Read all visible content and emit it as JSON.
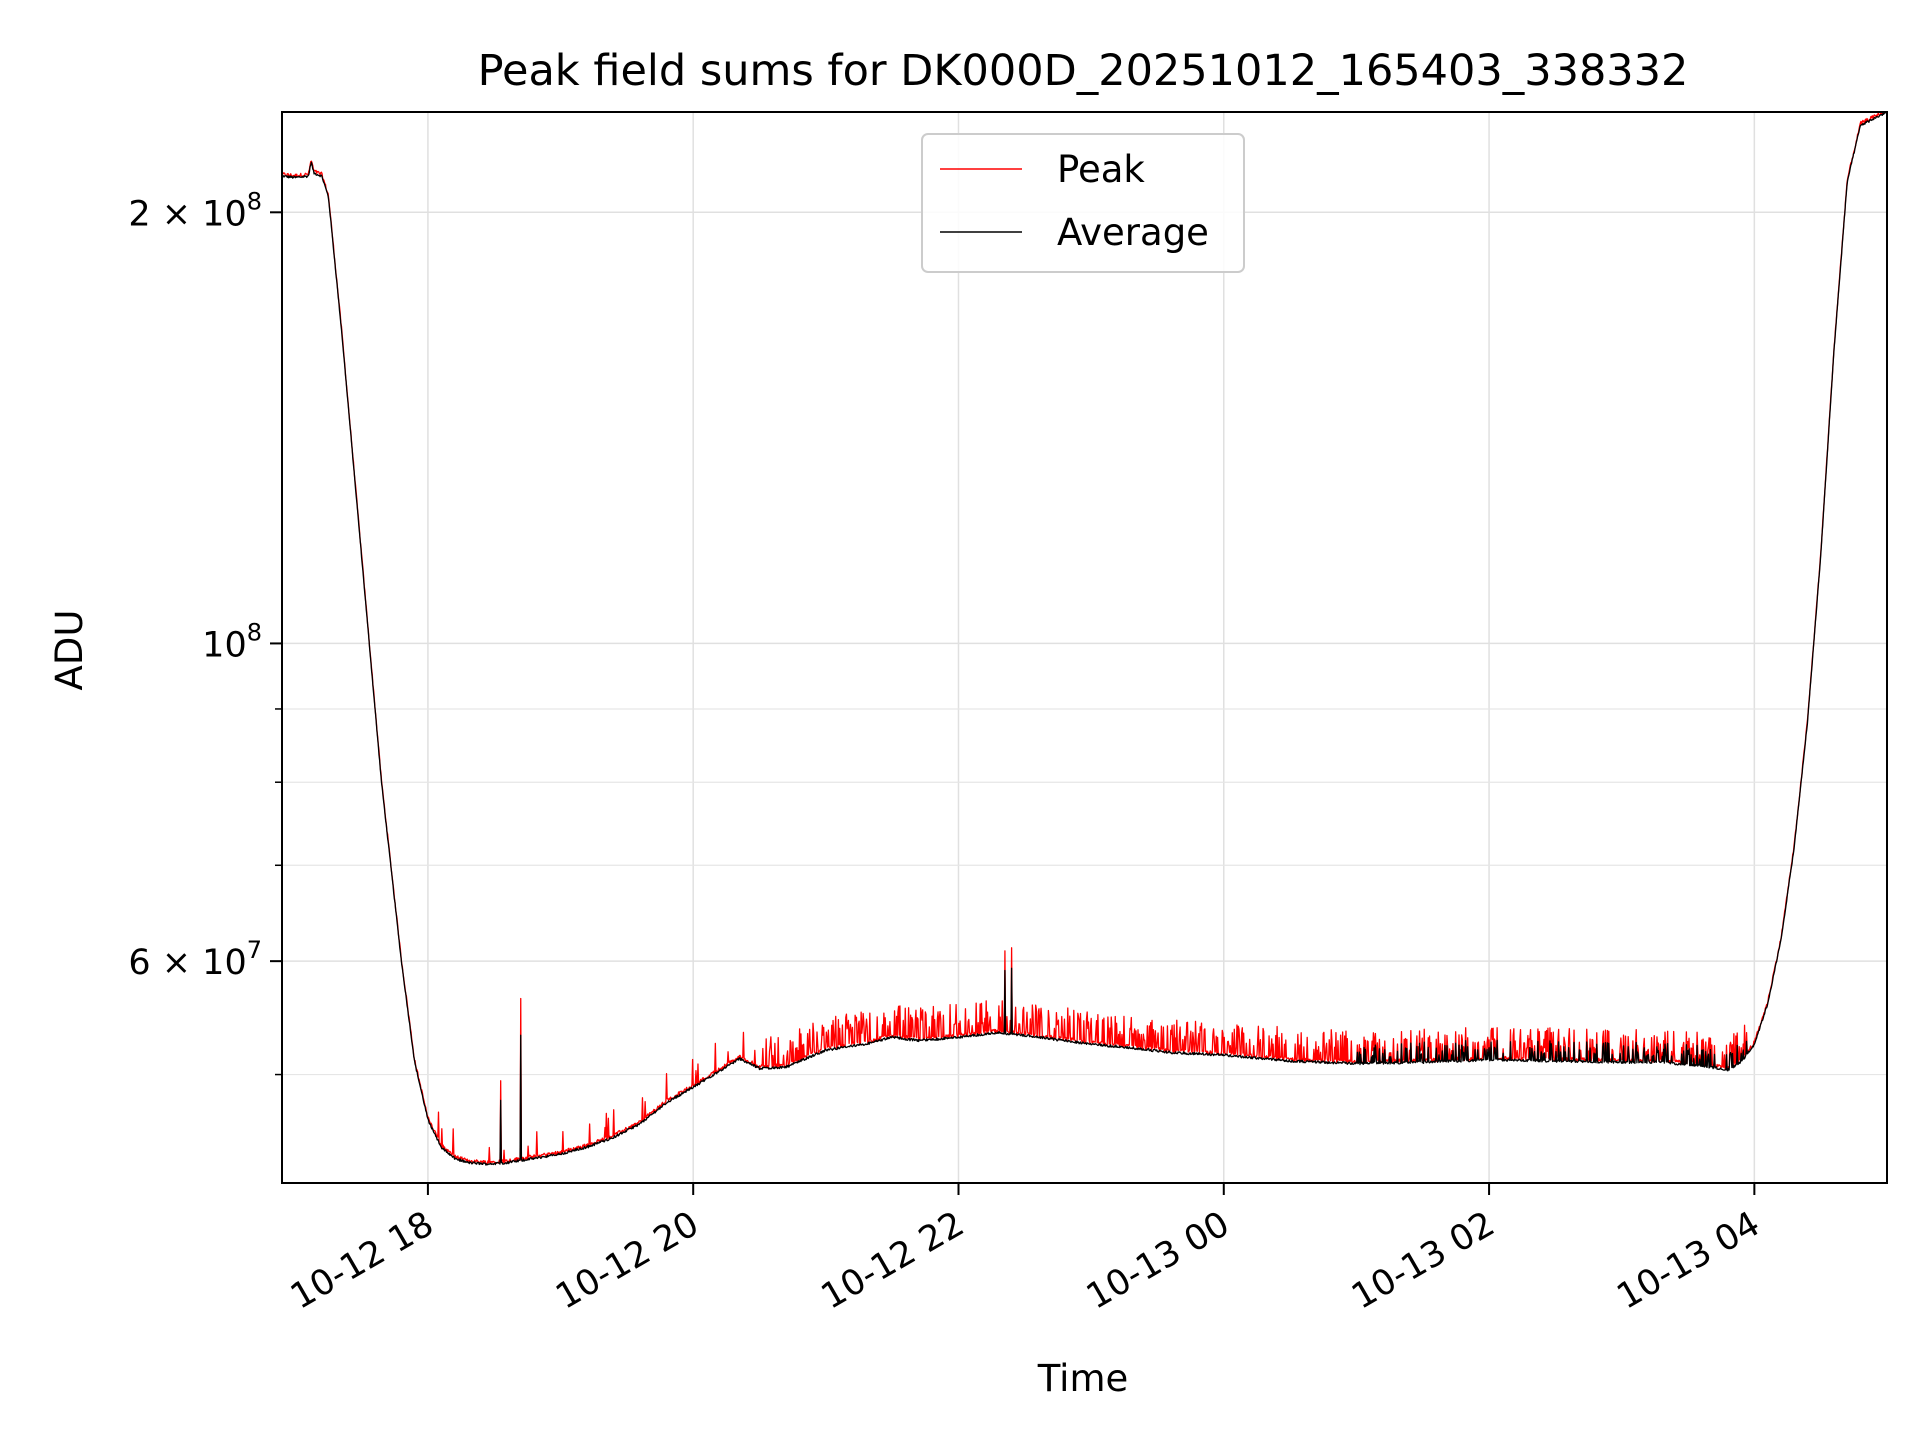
{
  "chart_data": {
    "type": "line",
    "title": "Peak field sums for DK000D_20251012_165403_338332",
    "xlabel": "Time",
    "ylabel": "ADU",
    "yscale": "log",
    "xlim_hours": [
      16.9,
      29.0
    ],
    "ylim": [
      42000000,
      235000000
    ],
    "grid": true,
    "legend_position": "upper-center",
    "x_ticks": [
      {
        "hour": 18,
        "label": "10-12 18"
      },
      {
        "hour": 20,
        "label": "10-12 20"
      },
      {
        "hour": 22,
        "label": "10-12 22"
      },
      {
        "hour": 24,
        "label": "10-13 00"
      },
      {
        "hour": 26,
        "label": "10-13 02"
      },
      {
        "hour": 28,
        "label": "10-13 04"
      }
    ],
    "y_major_ticks": [
      {
        "value": 60000000,
        "base": "6 × 10",
        "exp": "7"
      },
      {
        "value": 100000000,
        "base": "10",
        "exp": "8"
      },
      {
        "value": 200000000,
        "base": "2 × 10",
        "exp": "8"
      }
    ],
    "y_minor_ticks": [
      50000000,
      70000000,
      80000000,
      90000000
    ],
    "series": [
      {
        "name": "Peak",
        "color": "#ff0000"
      },
      {
        "name": "Average",
        "color": "#000000"
      }
    ],
    "average_curve": [
      [
        16.9,
        212000000
      ],
      [
        17.0,
        211500000
      ],
      [
        17.1,
        212000000
      ],
      [
        17.12,
        217000000
      ],
      [
        17.14,
        213000000
      ],
      [
        17.2,
        212000000
      ],
      [
        17.25,
        205000000
      ],
      [
        17.35,
        165000000
      ],
      [
        17.5,
        115000000
      ],
      [
        17.65,
        80000000
      ],
      [
        17.8,
        60000000
      ],
      [
        17.9,
        51000000
      ],
      [
        18.0,
        46500000
      ],
      [
        18.1,
        44500000
      ],
      [
        18.2,
        43700000
      ],
      [
        18.3,
        43400000
      ],
      [
        18.45,
        43300000
      ],
      [
        18.6,
        43400000
      ],
      [
        18.8,
        43700000
      ],
      [
        19.0,
        44000000
      ],
      [
        19.2,
        44500000
      ],
      [
        19.4,
        45200000
      ],
      [
        19.6,
        46200000
      ],
      [
        19.8,
        47800000
      ],
      [
        20.0,
        49000000
      ],
      [
        20.2,
        50300000
      ],
      [
        20.35,
        51300000
      ],
      [
        20.5,
        50500000
      ],
      [
        20.7,
        50600000
      ],
      [
        20.85,
        51300000
      ],
      [
        21.0,
        52000000
      ],
      [
        21.3,
        52500000
      ],
      [
        21.5,
        53100000
      ],
      [
        21.7,
        52800000
      ],
      [
        22.0,
        53100000
      ],
      [
        22.3,
        53500000
      ],
      [
        22.6,
        53100000
      ],
      [
        23.0,
        52500000
      ],
      [
        23.3,
        52200000
      ],
      [
        23.6,
        51800000
      ],
      [
        24.0,
        51600000
      ],
      [
        24.5,
        51100000
      ],
      [
        25.0,
        50900000
      ],
      [
        25.5,
        51000000
      ],
      [
        26.0,
        51200000
      ],
      [
        26.5,
        51100000
      ],
      [
        27.0,
        51000000
      ],
      [
        27.3,
        51000000
      ],
      [
        27.6,
        50700000
      ],
      [
        27.8,
        50400000
      ],
      [
        27.9,
        51000000
      ],
      [
        28.0,
        52500000
      ],
      [
        28.1,
        56000000
      ],
      [
        28.2,
        62000000
      ],
      [
        28.3,
        72000000
      ],
      [
        28.4,
        88000000
      ],
      [
        28.5,
        115000000
      ],
      [
        28.6,
        160000000
      ],
      [
        28.7,
        210000000
      ],
      [
        28.8,
        230000000
      ],
      [
        29.0,
        235000000
      ]
    ],
    "notable_spikes": [
      {
        "hour": 18.55,
        "value": 49500000
      },
      {
        "hour": 18.7,
        "value": 56500000
      },
      {
        "hour": 22.35,
        "value": 61000000
      },
      {
        "hour": 22.4,
        "value": 61300000
      }
    ]
  }
}
